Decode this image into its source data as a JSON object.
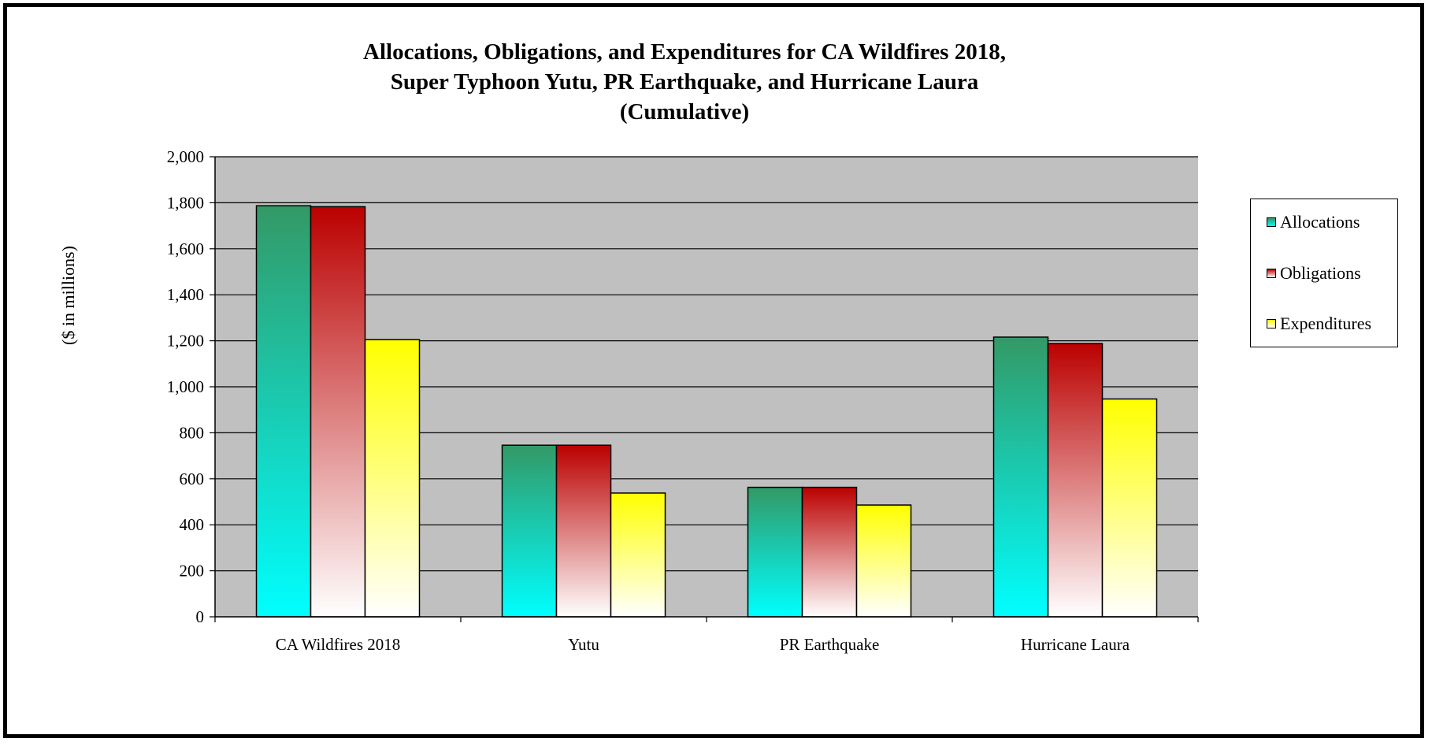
{
  "title_lines": [
    "Allocations, Obligations, and Expenditures for CA Wildfires 2018,",
    "Super Typhoon Yutu, PR Earthquake, and Hurricane Laura",
    "(Cumulative)"
  ],
  "chart_data": {
    "type": "bar",
    "title": "Allocations, Obligations, and Expenditures for CA Wildfires 2018, Super Typhoon Yutu, PR Earthquake, and Hurricane Laura (Cumulative)",
    "xlabel": "",
    "ylabel": "($ in millions)",
    "ylim": [
      0,
      2000
    ],
    "yticks": [
      0,
      200,
      400,
      600,
      800,
      1000,
      1200,
      1400,
      1600,
      1800,
      2000
    ],
    "ytick_labels": [
      "0",
      "200",
      "400",
      "600",
      "800",
      "1,000",
      "1,200",
      "1,400",
      "1,600",
      "1,800",
      "2,000"
    ],
    "grid": true,
    "legend_position": "right",
    "plot_background": "#c0c0c0",
    "categories": [
      "CA Wildfires 2018",
      "Yutu",
      "PR Earthquake",
      "Hurricane Laura"
    ],
    "series": [
      {
        "name": "Allocations",
        "values": [
          1787,
          746,
          563,
          1216
        ],
        "color_top": "#339966",
        "color_bottom": "#00ffff"
      },
      {
        "name": "Obligations",
        "values": [
          1783,
          746,
          563,
          1188
        ],
        "color_top": "#bb0000",
        "color_bottom": "#ffffff"
      },
      {
        "name": "Expenditures",
        "values": [
          1205,
          538,
          486,
          947
        ],
        "color_top": "#ffff00",
        "color_bottom": "#ffffff"
      }
    ]
  }
}
